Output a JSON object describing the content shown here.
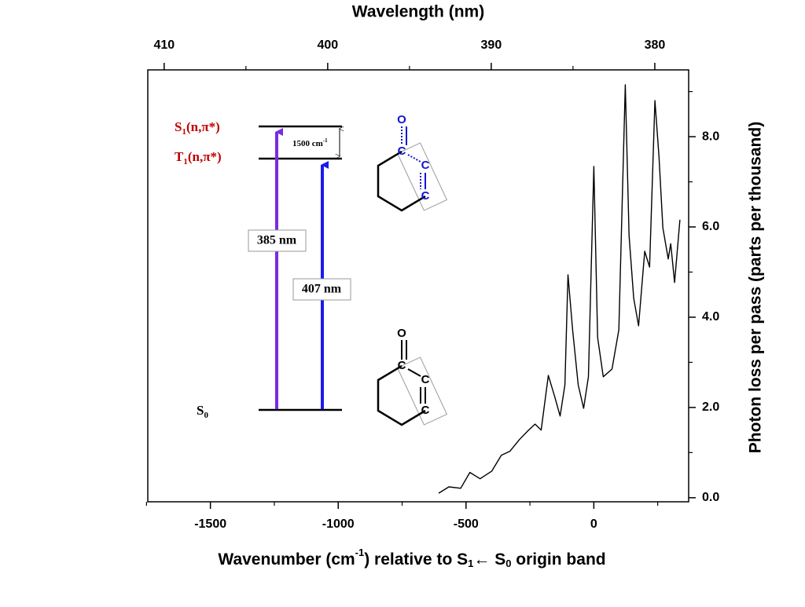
{
  "chart_data": {
    "type": "line",
    "top_axis_label": "Wavelength (nm)",
    "x_label": [
      "Wavenumber (cm",
      "-1",
      ") relative to S",
      "1",
      "← S",
      "0",
      " origin band"
    ],
    "y_label": "Photon loss per pass (parts per thousand)",
    "x": [
      -607,
      -567,
      -521,
      -485,
      -445,
      -399,
      -362,
      -328,
      -291,
      -255,
      -230,
      -206,
      -178,
      -153,
      -132,
      -113,
      -101,
      -83,
      -61,
      -40,
      -21,
      0,
      15,
      37,
      71,
      98,
      123,
      138,
      156,
      175,
      199,
      218,
      239,
      255,
      270,
      291,
      301,
      316,
      337
    ],
    "values": [
      0.1,
      0.24,
      0.21,
      0.56,
      0.42,
      0.59,
      0.94,
      1.03,
      1.29,
      1.5,
      1.63,
      1.5,
      2.71,
      2.24,
      1.81,
      2.5,
      4.94,
      3.72,
      2.5,
      1.98,
      2.68,
      7.34,
      3.55,
      2.68,
      2.85,
      3.72,
      9.15,
      5.81,
      4.42,
      3.81,
      5.46,
      5.11,
      8.8,
      7.55,
      5.98,
      5.29,
      5.63,
      4.77,
      6.16
    ],
    "color": "#000000",
    "xlim": [
      -1745,
      371
    ],
    "xticks": [
      -1500,
      -1000,
      -500,
      0
    ],
    "xminorticks": [
      -1750,
      -1250,
      -750,
      -250,
      250
    ],
    "ylim": [
      -0.09,
      9.48
    ],
    "yticks": [
      {
        "value": 0,
        "label": "0.0"
      },
      {
        "value": 2,
        "label": "2.0"
      },
      {
        "value": 4,
        "label": "4.0"
      },
      {
        "value": 6,
        "label": "6.0"
      },
      {
        "value": 8,
        "label": "8.0"
      }
    ],
    "yminorticks": [
      1,
      3,
      5,
      7,
      9
    ],
    "x2lim": [
      411.0,
      377.93
    ],
    "x2ticks": [
      410,
      400,
      390,
      380
    ],
    "x2minorticks": [
      405,
      395,
      385
    ],
    "inset": {
      "levels": [
        {
          "label": [
            "S",
            "1",
            "(n,π*)"
          ],
          "color": "#c00000"
        },
        {
          "label": [
            "T",
            "1",
            "(n,π*)"
          ],
          "color": "#c00000"
        },
        {
          "label": [
            "S",
            "0"
          ],
          "color": "#000000"
        }
      ],
      "gap_label": [
        "1500 cm",
        "-1"
      ],
      "arrows": [
        {
          "label": "385 nm",
          "color": "#7a2be2"
        },
        {
          "label": "407 nm",
          "color": "#1a1aee"
        }
      ],
      "molecules": [
        {
          "atoms": [
            "O",
            "C",
            "C",
            "C"
          ],
          "color": "#1414d0"
        },
        {
          "atoms": [
            "O",
            "C",
            "C",
            "C"
          ],
          "color": "#000000"
        }
      ]
    }
  }
}
